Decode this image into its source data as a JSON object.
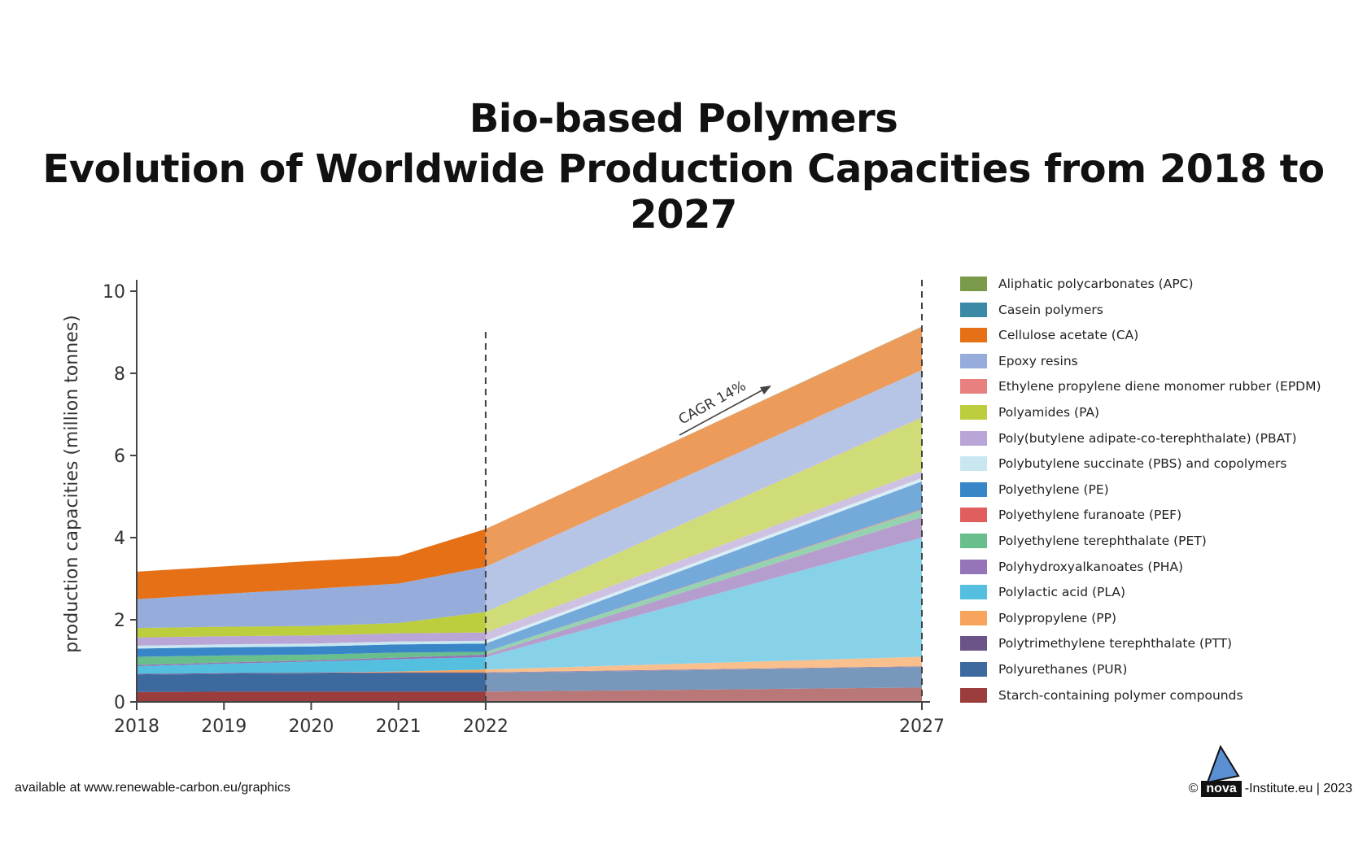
{
  "title_line1": "Bio-based Polymers",
  "title_line2": "Evolution of Worldwide Production Capacities from 2018 to 2027",
  "footer": {
    "left": "available at www.renewable-carbon.eu/graphics",
    "copyright": "©",
    "brand": "nova",
    "domain": "-Institute.eu | 2023"
  },
  "chart_data": {
    "type": "area",
    "stacked": true,
    "title": "Bio-based Polymers Evolution of Worldwide Production Capacities from 2018 to 2027",
    "ylabel": "production capacities (million tonnes)",
    "xlabel": "",
    "ylim": [
      0,
      10
    ],
    "yticks": [
      0,
      2,
      4,
      6,
      8,
      10
    ],
    "x": [
      2018,
      2019,
      2020,
      2021,
      2022,
      2027
    ],
    "annotation": "CAGR 14%",
    "forecast_start": 2022,
    "series": [
      {
        "name": "Starch-containing polymer compounds",
        "color": "#9b3d3d",
        "values": [
          0.24,
          0.25,
          0.25,
          0.25,
          0.25,
          0.35
        ]
      },
      {
        "name": "Polyurethanes (PUR)",
        "color": "#3d6a9e",
        "values": [
          0.42,
          0.43,
          0.44,
          0.45,
          0.45,
          0.5
        ]
      },
      {
        "name": "Polytrimethylene terephthalate (PTT)",
        "color": "#6b5488",
        "values": [
          0.02,
          0.02,
          0.02,
          0.02,
          0.02,
          0.02
        ]
      },
      {
        "name": "Polypropylene (PP)",
        "color": "#f7a45c",
        "values": [
          0.0,
          0.0,
          0.0,
          0.02,
          0.07,
          0.23
        ]
      },
      {
        "name": "Polylactic acid (PLA)",
        "color": "#55bfe0",
        "values": [
          0.19,
          0.23,
          0.27,
          0.3,
          0.3,
          2.9
        ]
      },
      {
        "name": "Polyhydroxyalkanoates (PHA)",
        "color": "#9575b8",
        "values": [
          0.03,
          0.03,
          0.03,
          0.04,
          0.06,
          0.5
        ]
      },
      {
        "name": "Polyethylene terephthalate (PET)",
        "color": "#68bf8c",
        "values": [
          0.2,
          0.17,
          0.14,
          0.12,
          0.07,
          0.17
        ]
      },
      {
        "name": "Polyethylene furanoate (PEF)",
        "color": "#e05e5e",
        "values": [
          0.0,
          0.0,
          0.0,
          0.0,
          0.0,
          0.02
        ]
      },
      {
        "name": "Polyethylene (PE)",
        "color": "#3886c8",
        "values": [
          0.2,
          0.2,
          0.2,
          0.2,
          0.2,
          0.68
        ]
      },
      {
        "name": "Polybutylene succinate (PBS) and copolymers",
        "color": "#c9e7f1",
        "values": [
          0.07,
          0.07,
          0.07,
          0.07,
          0.07,
          0.08
        ]
      },
      {
        "name": "Poly(butylene adipate-co-terephthalate) (PBAT)",
        "color": "#b9a6d6",
        "values": [
          0.2,
          0.2,
          0.2,
          0.2,
          0.2,
          0.17
        ]
      },
      {
        "name": "Polyamides (PA)",
        "color": "#bccd3d",
        "values": [
          0.23,
          0.23,
          0.23,
          0.25,
          0.5,
          1.3
        ]
      },
      {
        "name": "Ethylene propylene diene monomer rubber (EPDM)",
        "color": "#e88080",
        "values": [
          0.0,
          0.0,
          0.0,
          0.0,
          0.0,
          0.01
        ]
      },
      {
        "name": "Epoxy resins",
        "color": "#96acdb",
        "values": [
          0.7,
          0.8,
          0.9,
          0.96,
          1.1,
          1.15
        ]
      },
      {
        "name": "Cellulose acetate (CA)",
        "color": "#e57015",
        "values": [
          0.67,
          0.67,
          0.68,
          0.67,
          0.92,
          1.05
        ]
      },
      {
        "name": "Casein polymers",
        "color": "#3a8aa6",
        "values": [
          0.0,
          0.0,
          0.0,
          0.0,
          0.0,
          0.0
        ]
      },
      {
        "name": "Aliphatic polycarbonates (APC)",
        "color": "#7a9a4a",
        "values": [
          0.0,
          0.0,
          0.0,
          0.0,
          0.0,
          0.01
        ]
      }
    ],
    "legend_order": [
      "Aliphatic polycarbonates (APC)",
      "Casein polymers",
      "Cellulose acetate (CA)",
      "Epoxy resins",
      "Ethylene propylene diene monomer rubber (EPDM)",
      "Polyamides (PA)",
      "Poly(butylene adipate-co-terephthalate) (PBAT)",
      "Polybutylene succinate (PBS) and copolymers",
      "Polyethylene (PE)",
      "Polyethylene furanoate (PEF)",
      "Polyethylene terephthalate (PET)",
      "Polyhydroxyalkanoates (PHA)",
      "Polylactic acid (PLA)",
      "Polypropylene (PP)",
      "Polytrimethylene terephthalate (PTT)",
      "Polyurethanes (PUR)",
      "Starch-containing polymer compounds"
    ]
  }
}
